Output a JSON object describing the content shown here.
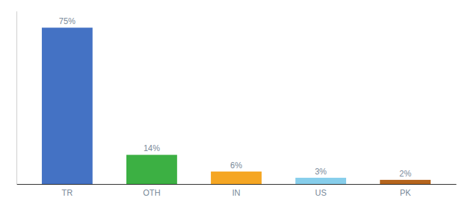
{
  "chart_data": {
    "type": "bar",
    "categories": [
      "TR",
      "OTH",
      "IN",
      "US",
      "PK"
    ],
    "values": [
      75,
      14,
      6,
      3,
      2
    ],
    "value_labels": [
      "75%",
      "14%",
      "6%",
      "3%",
      "2%"
    ],
    "colors": [
      "#4472c4",
      "#3cb043",
      "#f5a623",
      "#87ceeb",
      "#b5651d"
    ],
    "ylim": [
      0,
      83
    ],
    "grid": false,
    "data_labels": true,
    "tick_labels": "x"
  }
}
